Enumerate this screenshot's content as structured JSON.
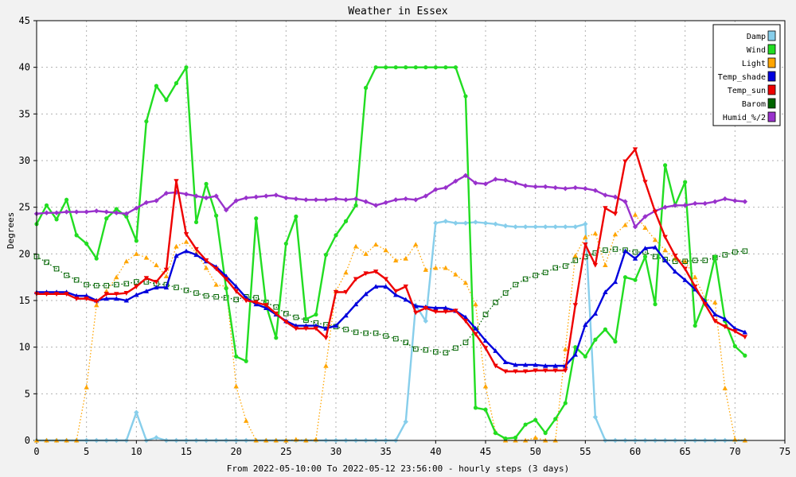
{
  "chart_data": {
    "type": "line",
    "title": "Weather in Essex",
    "xlabel": "From 2022-05-10:00 To 2022-05-12 23:56:00 - hourly steps (3 days)",
    "ylabel": "Degrees",
    "xlim": [
      0,
      75
    ],
    "ylim": [
      0,
      45
    ],
    "xticks": [
      0,
      5,
      10,
      15,
      20,
      25,
      30,
      35,
      40,
      45,
      50,
      55,
      60,
      65,
      70,
      75
    ],
    "yticks": [
      0,
      5,
      10,
      15,
      20,
      25,
      30,
      35,
      40,
      45
    ],
    "grid": true,
    "legend_position": "top-right",
    "series": [
      {
        "name": "Damp",
        "color": "#87ceeb",
        "line": "solid",
        "marker": "diamond",
        "values": [
          0,
          0,
          0,
          0,
          0,
          0,
          0,
          0,
          0,
          0,
          3,
          0,
          0.3,
          0,
          0,
          0,
          0,
          0,
          0,
          0,
          0,
          0,
          0,
          0,
          0,
          0,
          0,
          0,
          0,
          0,
          0,
          0,
          0,
          0,
          0,
          0,
          0,
          2,
          14.5,
          12.8,
          23.3,
          23.5,
          23.3,
          23.3,
          23.4,
          23.3,
          23.2,
          23,
          22.9,
          22.9,
          22.9,
          22.9,
          22.9,
          22.9,
          22.9,
          23.2,
          2.5,
          0,
          0,
          0,
          0,
          0,
          0,
          0,
          0,
          0,
          0,
          0,
          0,
          0,
          0,
          0
        ]
      },
      {
        "name": "Wind",
        "color": "#22dd22",
        "line": "solid",
        "marker": "dot",
        "values": [
          23.2,
          25.2,
          23.7,
          25.8,
          22,
          21.1,
          19.5,
          23.8,
          24.8,
          24,
          21.4,
          34.2,
          38,
          36.5,
          38.3,
          40,
          23.4,
          27.5,
          24.1,
          16.3,
          9,
          8.5,
          23.8,
          14.5,
          11,
          21.1,
          24,
          13,
          13.5,
          19.9,
          22,
          23.5,
          25.2,
          37.8,
          40,
          40,
          40,
          40,
          40,
          40,
          40,
          40,
          40,
          36.9,
          3.5,
          3.3,
          0.8,
          0.2,
          0.3,
          1.7,
          2.2,
          0.8,
          2.3,
          4,
          10,
          9,
          10.8,
          11.9,
          10.6,
          17.5,
          17.2,
          19.7,
          14.6,
          29.5,
          25.2,
          27.7,
          12.3,
          15,
          19.7,
          12.8,
          10.1,
          9.1
        ]
      },
      {
        "name": "Light",
        "color": "#ffa500",
        "line": "dotted",
        "marker": "triangle",
        "values": [
          0,
          0,
          0,
          0,
          0,
          5.7,
          14.5,
          16,
          17.5,
          19.2,
          20,
          19.6,
          18.8,
          17.6,
          20.8,
          21.3,
          20.1,
          18.5,
          16.7,
          16.5,
          5.8,
          2.1,
          0,
          0,
          0,
          0,
          0.1,
          0,
          0.1,
          8,
          16,
          18,
          20.8,
          20,
          21,
          20.4,
          19.3,
          19.5,
          21,
          18.3,
          18.5,
          18.5,
          17.8,
          16.9,
          14.6,
          5.8,
          0.9,
          0,
          0,
          0,
          0.3,
          0,
          0,
          9.8,
          19.8,
          21.8,
          22.2,
          18.8,
          22.1,
          23.1,
          24.2,
          22.8,
          21.5,
          20.4,
          19.5,
          19.2,
          17.5,
          15.2,
          14.8,
          5.6,
          0.1,
          0
        ]
      },
      {
        "name": "Temp_shade",
        "color": "#0000dd",
        "line": "solid",
        "marker": "triangle",
        "values": [
          15.9,
          15.9,
          15.9,
          15.9,
          15.5,
          15.5,
          15,
          15.2,
          15.2,
          15,
          15.6,
          16,
          16.4,
          16.4,
          19.8,
          20.3,
          19.9,
          19.2,
          18.6,
          17.6,
          16.5,
          15.3,
          14.6,
          14.2,
          13.5,
          12.8,
          12.3,
          12.3,
          12.3,
          12,
          12.3,
          13.4,
          14.6,
          15.7,
          16.5,
          16.5,
          15.6,
          15.1,
          14.4,
          14.3,
          14.2,
          14.2,
          13.9,
          13.2,
          12,
          10.7,
          9.6,
          8.4,
          8.1,
          8.1,
          8.1,
          8,
          8,
          8,
          9.2,
          12.4,
          13.6,
          15.9,
          17,
          20.3,
          19.5,
          20.6,
          20.7,
          19.3,
          18.1,
          17.2,
          16.2,
          14.9,
          13.5,
          13,
          12,
          11.6
        ]
      },
      {
        "name": "Temp_sun",
        "color": "#ee0000",
        "line": "solid",
        "marker": "triangle_down",
        "values": [
          15.7,
          15.7,
          15.7,
          15.7,
          15.2,
          15.2,
          14.9,
          15.7,
          15.7,
          15.8,
          16.5,
          17.4,
          17,
          18.3,
          27.8,
          22.1,
          20.5,
          19.3,
          18.4,
          17.3,
          16,
          15,
          14.8,
          14.5,
          13.6,
          12.7,
          12,
          12,
          12,
          11,
          15.9,
          15.9,
          17.3,
          17.9,
          18.1,
          17.3,
          16,
          16.5,
          13.7,
          14.2,
          13.8,
          13.8,
          13.9,
          12.8,
          11.4,
          9.9,
          8,
          7.4,
          7.4,
          7.4,
          7.5,
          7.5,
          7.5,
          7.5,
          14.5,
          21,
          18.8,
          24.9,
          24.3,
          29.9,
          31.2,
          27.7,
          24.5,
          21.8,
          19.8,
          18.4,
          16.5,
          14.6,
          12.8,
          12.2,
          11.7,
          11.1
        ]
      },
      {
        "name": "Barom",
        "color": "#006400",
        "line": "dotted",
        "marker": "square",
        "values": [
          19.7,
          19.1,
          18.4,
          17.7,
          17.2,
          16.7,
          16.6,
          16.6,
          16.7,
          16.8,
          17,
          17,
          16.8,
          16.7,
          16.4,
          16.1,
          15.8,
          15.5,
          15.4,
          15.3,
          15.1,
          15.4,
          15.3,
          14.8,
          14.3,
          13.6,
          13.2,
          12.9,
          12.6,
          12.4,
          12.2,
          11.9,
          11.6,
          11.5,
          11.5,
          11.2,
          10.9,
          10.5,
          9.8,
          9.7,
          9.5,
          9.4,
          9.9,
          10.5,
          11.8,
          13.5,
          14.8,
          15.8,
          16.7,
          17.3,
          17.7,
          18,
          18.5,
          18.7,
          19.3,
          19.7,
          20.1,
          20.4,
          20.5,
          20.4,
          20.2,
          20.2,
          19.7,
          19.4,
          19.2,
          19.2,
          19.3,
          19.3,
          19.6,
          19.9,
          20.2,
          20.3
        ]
      },
      {
        "name": "Humid_%/2",
        "color": "#9932cc",
        "line": "solid",
        "marker": "diamond",
        "values": [
          24.3,
          24.4,
          24.4,
          24.5,
          24.5,
          24.5,
          24.6,
          24.5,
          24.4,
          24.3,
          24.9,
          25.5,
          25.7,
          26.5,
          26.6,
          26.4,
          26.2,
          26,
          26.2,
          24.7,
          25.7,
          26,
          26.1,
          26.2,
          26.3,
          26,
          25.9,
          25.8,
          25.8,
          25.8,
          25.9,
          25.8,
          25.9,
          25.6,
          25.2,
          25.5,
          25.8,
          25.9,
          25.8,
          26.2,
          26.9,
          27.1,
          27.8,
          28.4,
          27.6,
          27.5,
          28,
          27.9,
          27.6,
          27.3,
          27.2,
          27.2,
          27.1,
          27,
          27.1,
          27,
          26.8,
          26.3,
          26.1,
          25.6,
          22.9,
          24,
          24.6,
          25,
          25.2,
          25.2,
          25.4,
          25.4,
          25.6,
          25.9,
          25.7,
          25.6
        ]
      }
    ]
  }
}
